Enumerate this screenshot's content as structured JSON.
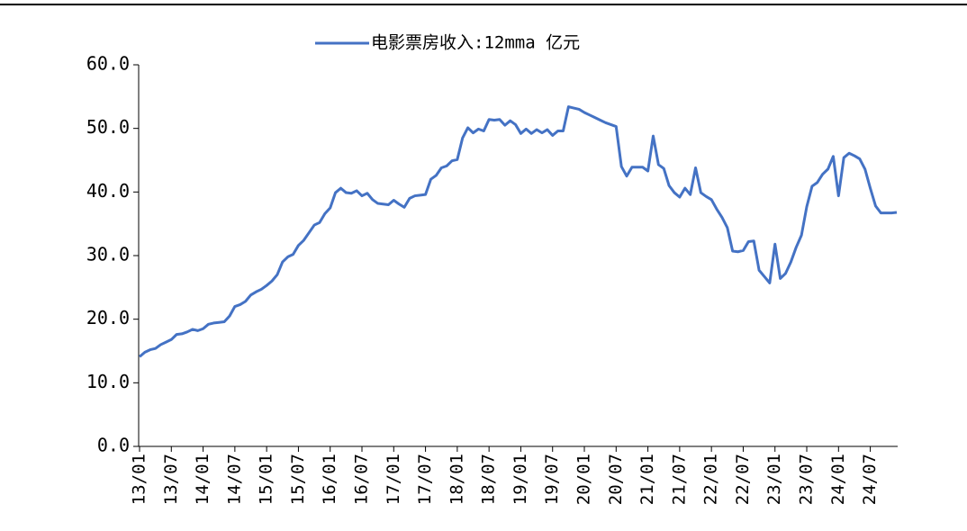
{
  "chart_data": {
    "type": "line",
    "categories": [
      "13/01",
      null,
      null,
      null,
      null,
      null,
      "13/07",
      null,
      null,
      null,
      null,
      null,
      "14/01",
      null,
      null,
      null,
      null,
      null,
      "14/07",
      null,
      null,
      null,
      null,
      null,
      "15/01",
      null,
      null,
      null,
      null,
      null,
      "15/07",
      null,
      null,
      null,
      null,
      null,
      "16/01",
      null,
      null,
      null,
      null,
      null,
      "16/07",
      null,
      null,
      null,
      null,
      null,
      "17/01",
      null,
      null,
      null,
      null,
      null,
      "17/07",
      null,
      null,
      null,
      null,
      null,
      "18/01",
      null,
      null,
      null,
      null,
      null,
      "18/07",
      null,
      null,
      null,
      null,
      null,
      "19/01",
      null,
      null,
      null,
      null,
      null,
      "19/07",
      null,
      null,
      null,
      null,
      null,
      "20/01",
      null,
      null,
      null,
      null,
      null,
      "20/07",
      null,
      null,
      null,
      null,
      null,
      "21/01",
      null,
      null,
      null,
      null,
      null,
      "21/07",
      null,
      null,
      null,
      null,
      null,
      "22/01",
      null,
      null,
      null,
      null,
      null,
      "22/07",
      null,
      null,
      null,
      null,
      null,
      "23/01",
      null,
      null,
      null,
      null,
      null,
      "23/07",
      null,
      null,
      null,
      null,
      null,
      "24/01",
      null,
      null,
      null,
      null,
      null,
      "24/07",
      null,
      null,
      null,
      null,
      null
    ],
    "series": [
      {
        "name": "电影票房收入:12mma 亿元",
        "color": "#4472c4",
        "values": [
          14.1,
          14.8,
          15.2,
          15.4,
          16.0,
          16.4,
          16.8,
          17.6,
          17.7,
          18.0,
          18.4,
          18.2,
          18.5,
          19.2,
          19.4,
          19.5,
          19.6,
          20.5,
          22.0,
          22.3,
          22.8,
          23.8,
          24.3,
          24.7,
          25.3,
          26.0,
          27.0,
          29.0,
          29.8,
          30.2,
          31.6,
          32.4,
          33.6,
          34.8,
          35.2,
          36.6,
          37.5,
          39.9,
          40.6,
          39.9,
          39.8,
          40.2,
          39.4,
          39.8,
          38.8,
          38.2,
          38.1,
          38.0,
          38.7,
          38.1,
          37.6,
          39.0,
          39.4,
          39.5,
          39.6,
          42.0,
          42.6,
          43.8,
          44.1,
          44.9,
          45.1,
          48.5,
          50.1,
          49.3,
          49.9,
          49.6,
          51.4,
          51.3,
          51.4,
          50.5,
          51.2,
          50.6,
          49.2,
          49.9,
          49.2,
          49.8,
          49.3,
          49.8,
          48.9,
          49.6,
          49.6,
          53.4,
          53.2,
          53.0,
          52.5,
          52.1,
          51.7,
          51.3,
          50.9,
          50.6,
          50.3,
          44.0,
          42.5,
          43.9,
          43.9,
          43.9,
          43.3,
          48.8,
          44.3,
          43.7,
          41.0,
          39.9,
          39.2,
          40.6,
          39.6,
          43.8,
          39.9,
          39.3,
          38.8,
          37.3,
          36.0,
          34.4,
          30.7,
          30.6,
          30.8,
          32.2,
          32.3,
          27.7,
          26.7,
          25.7,
          31.8,
          26.4,
          27.2,
          29.0,
          31.3,
          33.2,
          37.7,
          40.9,
          41.5,
          42.8,
          43.6,
          45.6,
          39.4,
          45.4,
          46.1,
          45.7,
          45.2,
          43.6,
          40.6,
          37.8,
          36.7,
          36.7,
          36.7,
          36.8
        ]
      }
    ],
    "ylim": [
      0,
      60
    ],
    "yticks": [
      {
        "value": 0,
        "label": "0.0"
      },
      {
        "value": 10,
        "label": "10.0"
      },
      {
        "value": 20,
        "label": "20.0"
      },
      {
        "value": 30,
        "label": "30.0"
      },
      {
        "value": 40,
        "label": "40.0"
      },
      {
        "value": 50,
        "label": "50.0"
      },
      {
        "value": 60,
        "label": "60.0"
      }
    ],
    "grid": false,
    "legend": "top"
  }
}
